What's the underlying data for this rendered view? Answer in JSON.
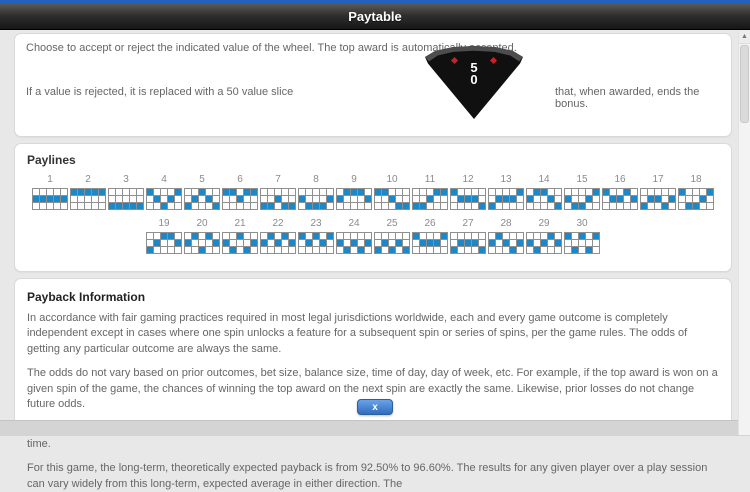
{
  "header": {
    "title": "Paytable"
  },
  "intro": {
    "line1": "Choose to accept or reject the indicated value of the wheel. The top award is automatically accepted.",
    "line2_before": "If a value is rejected, it is replaced with a 50 value slice",
    "line2_after": "that, when awarded, ends the bonus.",
    "wedge_value_top": "5",
    "wedge_value_bottom": "0"
  },
  "paylines": {
    "heading": "Paylines",
    "grid_rows": 3,
    "grid_cols": 5,
    "cell_color": "#1d88c7",
    "lines": [
      {
        "number": 1,
        "pattern": [
          1,
          1,
          1,
          1,
          1
        ]
      },
      {
        "number": 2,
        "pattern": [
          0,
          0,
          0,
          0,
          0
        ]
      },
      {
        "number": 3,
        "pattern": [
          2,
          2,
          2,
          2,
          2
        ]
      },
      {
        "number": 4,
        "pattern": [
          0,
          1,
          2,
          1,
          0
        ]
      },
      {
        "number": 5,
        "pattern": [
          2,
          1,
          0,
          1,
          2
        ]
      },
      {
        "number": 6,
        "pattern": [
          0,
          0,
          1,
          0,
          0
        ]
      },
      {
        "number": 7,
        "pattern": [
          2,
          2,
          1,
          2,
          2
        ]
      },
      {
        "number": 8,
        "pattern": [
          1,
          2,
          2,
          2,
          1
        ]
      },
      {
        "number": 9,
        "pattern": [
          1,
          0,
          0,
          0,
          1
        ]
      },
      {
        "number": 10,
        "pattern": [
          0,
          0,
          1,
          2,
          2
        ]
      },
      {
        "number": 11,
        "pattern": [
          2,
          2,
          1,
          0,
          0
        ]
      },
      {
        "number": 12,
        "pattern": [
          0,
          1,
          1,
          1,
          2
        ]
      },
      {
        "number": 13,
        "pattern": [
          2,
          1,
          1,
          1,
          0
        ]
      },
      {
        "number": 14,
        "pattern": [
          1,
          0,
          0,
          1,
          2
        ]
      },
      {
        "number": 15,
        "pattern": [
          1,
          2,
          2,
          1,
          0
        ]
      },
      {
        "number": 16,
        "pattern": [
          0,
          1,
          1,
          0,
          1
        ]
      },
      {
        "number": 17,
        "pattern": [
          2,
          1,
          1,
          2,
          1
        ]
      },
      {
        "number": 18,
        "pattern": [
          0,
          2,
          2,
          1,
          0
        ]
      },
      {
        "number": 19,
        "pattern": [
          2,
          1,
          0,
          0,
          1
        ]
      },
      {
        "number": 20,
        "pattern": [
          1,
          0,
          2,
          0,
          1
        ]
      },
      {
        "number": 21,
        "pattern": [
          1,
          2,
          0,
          2,
          1
        ]
      },
      {
        "number": 22,
        "pattern": [
          1,
          0,
          1,
          0,
          1
        ]
      },
      {
        "number": 23,
        "pattern": [
          0,
          1,
          0,
          1,
          0
        ]
      },
      {
        "number": 24,
        "pattern": [
          1,
          2,
          1,
          2,
          1
        ]
      },
      {
        "number": 25,
        "pattern": [
          2,
          1,
          2,
          1,
          2
        ]
      },
      {
        "number": 26,
        "pattern": [
          0,
          1,
          1,
          1,
          0
        ]
      },
      {
        "number": 27,
        "pattern": [
          2,
          1,
          1,
          1,
          2
        ]
      },
      {
        "number": 28,
        "pattern": [
          1,
          0,
          1,
          2,
          1
        ]
      },
      {
        "number": 29,
        "pattern": [
          1,
          2,
          1,
          0,
          1
        ]
      },
      {
        "number": 30,
        "pattern": [
          0,
          2,
          0,
          2,
          0
        ]
      }
    ],
    "row1_count": 18,
    "row2_count": 12
  },
  "payback": {
    "heading": "Payback Information",
    "paragraphs": [
      "In accordance with fair gaming practices required in most legal jurisdictions worldwide, each and every game outcome is completely independent except in cases where one spin unlocks a feature for a subsequent spin or series of spins, per the game rules. The odds of getting any particular outcome are always the same.",
      "The odds do not vary based on prior outcomes, bet size, balance size, time of day, day of week, etc. For example, if the top award is won on a given spin of the game, the chances of winning the top award on the next spin are exactly the same. Likewise, prior losses do not change future odds.",
      "The expected payback reflects the theoretical return across a very large number of spins by numerous players over an extended period of time.",
      "For this game, the long-term, theoretically expected payback is from 92.50% to 96.60%. The results for any given player over a play session can vary widely from this long-term, expected average in either direction. The"
    ]
  },
  "close_button": {
    "label": "x"
  },
  "scrollbar": {
    "up_arrow": "▲"
  },
  "colors": {
    "accent_blue": "#2161c0",
    "payline_cell_blue": "#1d88c7",
    "button_blue": "#3d7fd0",
    "titlebar_dark": "#2f2f2f"
  }
}
